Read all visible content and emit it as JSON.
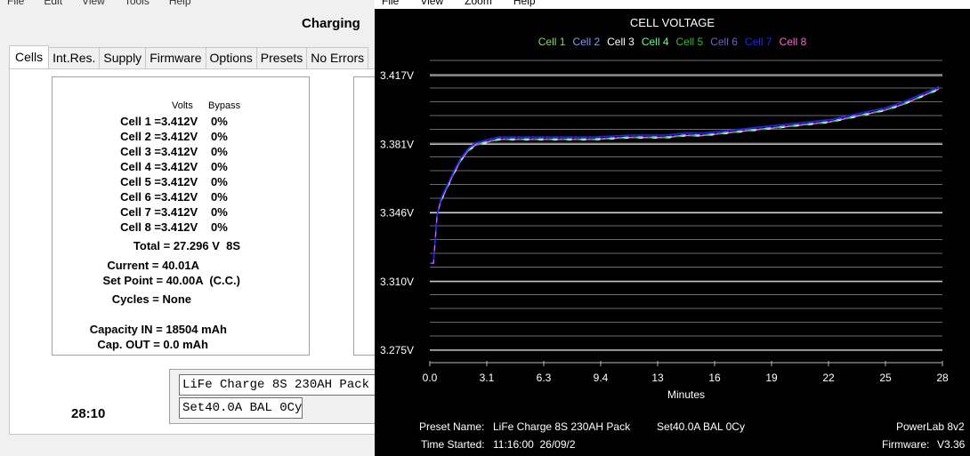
{
  "left_window": {
    "menu": [
      "File",
      "Edit",
      "View",
      "Tools",
      "Help"
    ],
    "status_title": "Charging",
    "tabs": [
      "Cells",
      "Int.Res.",
      "Supply",
      "Firmware",
      "Options",
      "Presets",
      "No Errors"
    ],
    "headers": {
      "volts": "Volts",
      "bypass": "Bypass"
    },
    "cells": [
      {
        "label": "Cell 1 =",
        "volts": "3.412V",
        "bypass": "0%"
      },
      {
        "label": "Cell 2 =",
        "volts": "3.412V",
        "bypass": "0%"
      },
      {
        "label": "Cell 3 =",
        "volts": "3.412V",
        "bypass": "0%"
      },
      {
        "label": "Cell 4 =",
        "volts": "3.412V",
        "bypass": "0%"
      },
      {
        "label": "Cell 5 =",
        "volts": "3.412V",
        "bypass": "0%"
      },
      {
        "label": "Cell 6 =",
        "volts": "3.412V",
        "bypass": "0%"
      },
      {
        "label": "Cell 7 =",
        "volts": "3.412V",
        "bypass": "0%"
      },
      {
        "label": "Cell 8 =",
        "volts": "3.412V",
        "bypass": "0%"
      }
    ],
    "total": "Total = 27.296 V  8S",
    "current": "Current = 40.01A",
    "set_point": "Set Point = 40.00A  (C.C.)",
    "cycles": "Cycles = None",
    "capacity_in": "Capacity IN = 18504 mAh",
    "cap_out": "Cap. OUT = 0.0 mAh",
    "preset_name": "LiFe Charge 8S 230AH Pack",
    "preset_settings": "Set40.0A BAL 0Cy",
    "timer": "28:10"
  },
  "chart_window": {
    "menu": [
      "File",
      "View",
      "Zoom",
      "Help"
    ],
    "footer": {
      "preset_label": "Preset Name:",
      "preset_value": "LiFe Charge 8S 230AH Pack",
      "preset_settings": "Set40.0A BAL 0Cy",
      "device": "PowerLab 8v2",
      "time_label": "Time Started:",
      "time_value": "11:16:00  26/09/2",
      "firmware_label": "Firmware:",
      "firmware_value": "V3.36"
    }
  },
  "chart_data": {
    "type": "line",
    "title": "CELL VOLTAGE",
    "xlabel": "Minutes",
    "ylabel": "",
    "x_ticks": [
      "0.0",
      "3.1",
      "6.3",
      "9.4",
      "13",
      "16",
      "19",
      "22",
      "25",
      "28"
    ],
    "y_ticks": [
      "3.417V",
      "3.381V",
      "3.346V",
      "3.310V",
      "3.275V"
    ],
    "xlim": [
      0,
      28.2
    ],
    "ylim": [
      3.275,
      3.417
    ],
    "grid": true,
    "legend_position": "top",
    "series": [
      {
        "name": "Cell 1",
        "color": "#88dd55"
      },
      {
        "name": "Cell 2",
        "color": "#8899ff"
      },
      {
        "name": "Cell 3",
        "color": "#ffffff"
      },
      {
        "name": "Cell 4",
        "color": "#66ff88"
      },
      {
        "name": "Cell 5",
        "color": "#33bb33"
      },
      {
        "name": "Cell 6",
        "color": "#6666cc"
      },
      {
        "name": "Cell 7",
        "color": "#2222ff"
      },
      {
        "name": "Cell 8",
        "color": "#ff66cc"
      }
    ],
    "x": [
      0.0,
      0.2,
      0.4,
      0.6,
      0.9,
      1.3,
      1.7,
      2.1,
      2.5,
      2.9,
      3.3,
      3.8,
      4.5,
      5.5,
      7,
      9,
      11,
      13,
      14,
      15,
      16,
      17,
      18,
      19,
      20,
      21,
      22,
      23,
      24,
      25,
      26,
      27,
      28.0
    ],
    "values": [
      3.32,
      3.32,
      3.345,
      3.352,
      3.358,
      3.366,
      3.373,
      3.378,
      3.381,
      3.382,
      3.383,
      3.384,
      3.384,
      3.384,
      3.384,
      3.384,
      3.385,
      3.385,
      3.386,
      3.386,
      3.387,
      3.388,
      3.389,
      3.39,
      3.391,
      3.392,
      3.393,
      3.395,
      3.397,
      3.399,
      3.402,
      3.406,
      3.41
    ]
  }
}
